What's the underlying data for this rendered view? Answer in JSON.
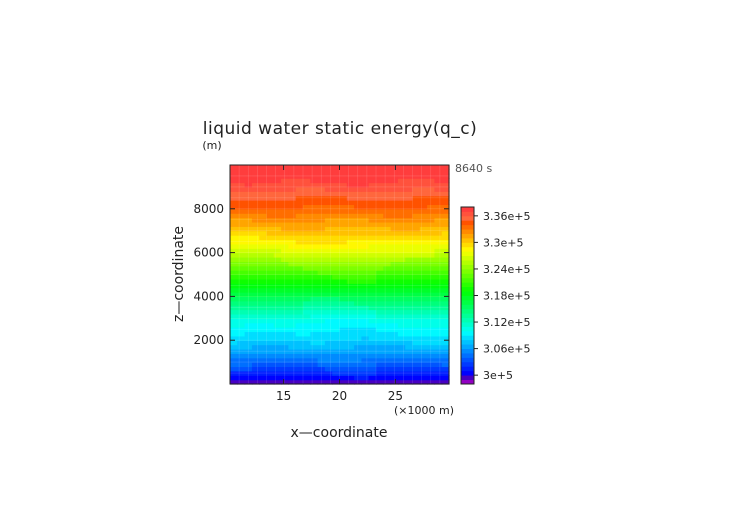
{
  "chart_data": {
    "type": "heatmap",
    "title": "liquid water static energy(q_c)",
    "xlabel": "x—coordinate",
    "ylabel": "z—coordinate",
    "y_unit": "(m)",
    "x_unit": "(×1000 m)",
    "time_label": "8640 s",
    "xlim": [
      10.2,
      29.8
    ],
    "ylim": [
      0,
      10000
    ],
    "x_ticks": [
      15,
      20,
      25
    ],
    "x_tick_labels": [
      "15",
      "20",
      "25"
    ],
    "y_ticks": [
      2000,
      4000,
      6000,
      8000
    ],
    "y_tick_labels": [
      "2000",
      "4000",
      "6000",
      "8000"
    ],
    "levels": [
      298000,
      299000,
      300000,
      301000,
      302000,
      303000,
      304000,
      305000,
      306000,
      307000,
      308000,
      309000,
      310000,
      311000,
      312000,
      313000,
      314000,
      315000,
      316000,
      317000,
      318000,
      319000,
      320000,
      321000,
      322000,
      323000,
      324000,
      325000,
      326000,
      327000,
      328000,
      329000,
      330000,
      331000,
      332000,
      333000,
      334000,
      335000,
      336000,
      337000,
      338000
    ],
    "colorbar_labels": [
      {
        "value": 300000,
        "text": "3e+5"
      },
      {
        "value": 306000,
        "text": "3.06e+5"
      },
      {
        "value": 312000,
        "text": "3.12e+5"
      },
      {
        "value": 318000,
        "text": "3.18e+5"
      },
      {
        "value": 324000,
        "text": "3.24e+5"
      },
      {
        "value": 330000,
        "text": "3.3e+5"
      },
      {
        "value": 336000,
        "text": "3.36e+5"
      }
    ],
    "profile_z": [
      0,
      1000,
      2000,
      3000,
      4000,
      5000,
      6000,
      7000,
      8000,
      9000,
      10000
    ],
    "profile_values": [
      299000,
      304300,
      308500,
      311500,
      316500,
      320800,
      326000,
      330200,
      334000,
      336500,
      338500
    ],
    "grid": true
  },
  "colors": {
    "background": "#ffffff",
    "frame": "#222222",
    "grid": "#ffffff"
  }
}
